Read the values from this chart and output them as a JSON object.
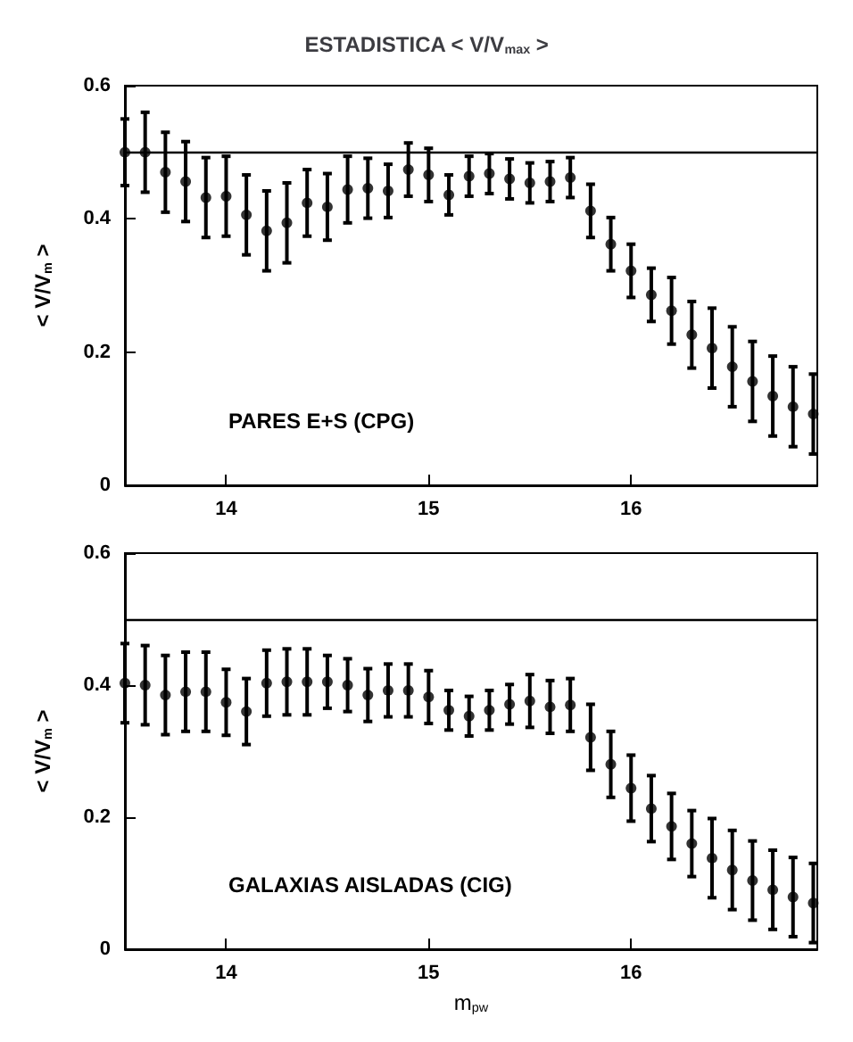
{
  "chart_data": [
    {
      "type": "scatter",
      "title": "ESTADISTICA < V/V$_{max}$ >",
      "ylabel": "< V/V$_{m}$ >",
      "x": [
        13.5,
        13.6,
        13.7,
        13.8,
        13.9,
        14.0,
        14.1,
        14.2,
        14.3,
        14.4,
        14.5,
        14.6,
        14.7,
        14.8,
        14.9,
        15.0,
        15.1,
        15.2,
        15.3,
        15.4,
        15.5,
        15.6,
        15.7,
        15.8,
        15.9,
        16.0,
        16.1,
        16.2,
        16.3,
        16.4,
        16.5,
        16.6,
        16.7,
        16.8,
        16.9
      ],
      "values": [
        0.5,
        0.5,
        0.47,
        0.456,
        0.432,
        0.434,
        0.406,
        0.382,
        0.394,
        0.424,
        0.418,
        0.444,
        0.446,
        0.442,
        0.474,
        0.466,
        0.436,
        0.464,
        0.468,
        0.46,
        0.454,
        0.456,
        0.462,
        0.412,
        0.362,
        0.322,
        0.286,
        0.262,
        0.226,
        0.206,
        0.178,
        0.156,
        0.134,
        0.118,
        0.107
      ],
      "errors": [
        0.05,
        0.06,
        0.06,
        0.06,
        0.06,
        0.06,
        0.06,
        0.06,
        0.06,
        0.05,
        0.05,
        0.05,
        0.045,
        0.04,
        0.04,
        0.04,
        0.03,
        0.03,
        0.03,
        0.03,
        0.03,
        0.03,
        0.03,
        0.04,
        0.04,
        0.04,
        0.04,
        0.05,
        0.05,
        0.06,
        0.06,
        0.06,
        0.06,
        0.06,
        0.06
      ],
      "color": "#000000",
      "marker": "circle",
      "xlim": [
        13.5,
        16.92
      ],
      "xticks": [
        14,
        15,
        16
      ],
      "ylim": [
        0,
        0.6
      ],
      "yticks": [
        0,
        0.2,
        0.4,
        0.6
      ],
      "ref_lines": [
        {
          "axis": "y",
          "value": 0.5,
          "color": "#000000"
        }
      ],
      "annotations": [
        "PARES E+S (CPG)"
      ],
      "grid": false
    },
    {
      "type": "scatter",
      "xlabel": "m$_{pw}$",
      "ylabel": "< V/V$_{m}$ >",
      "x": [
        13.5,
        13.6,
        13.7,
        13.8,
        13.9,
        14.0,
        14.1,
        14.2,
        14.3,
        14.4,
        14.5,
        14.6,
        14.7,
        14.8,
        14.9,
        15.0,
        15.1,
        15.2,
        15.3,
        15.4,
        15.5,
        15.6,
        15.7,
        15.8,
        15.9,
        16.0,
        16.1,
        16.2,
        16.3,
        16.4,
        16.5,
        16.6,
        16.7,
        16.8,
        16.9
      ],
      "values": [
        0.403,
        0.4,
        0.385,
        0.39,
        0.39,
        0.374,
        0.36,
        0.403,
        0.405,
        0.405,
        0.405,
        0.4,
        0.385,
        0.392,
        0.392,
        0.382,
        0.362,
        0.353,
        0.362,
        0.371,
        0.376,
        0.367,
        0.37,
        0.321,
        0.28,
        0.244,
        0.213,
        0.186,
        0.16,
        0.138,
        0.12,
        0.104,
        0.09,
        0.079,
        0.07
      ],
      "errors": [
        0.06,
        0.06,
        0.06,
        0.06,
        0.06,
        0.05,
        0.05,
        0.05,
        0.05,
        0.05,
        0.04,
        0.04,
        0.04,
        0.04,
        0.04,
        0.04,
        0.03,
        0.03,
        0.03,
        0.03,
        0.04,
        0.04,
        0.04,
        0.05,
        0.05,
        0.05,
        0.05,
        0.05,
        0.05,
        0.06,
        0.06,
        0.06,
        0.06,
        0.06,
        0.06
      ],
      "color": "#000000",
      "marker": "circle",
      "xlim": [
        13.5,
        16.92
      ],
      "xticks": [
        14,
        15,
        16
      ],
      "ylim": [
        0,
        0.6
      ],
      "yticks": [
        0,
        0.2,
        0.4,
        0.6
      ],
      "ref_lines": [
        {
          "axis": "y",
          "value": 0.5,
          "color": "#000000"
        }
      ],
      "annotations": [
        "GALAXIAS AISLADAS (CIG)"
      ],
      "grid": false
    }
  ]
}
